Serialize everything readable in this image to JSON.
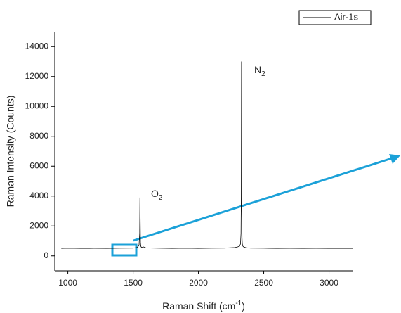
{
  "chart_data": {
    "type": "line",
    "x_label": {
      "text": "Raman Shift (cm",
      "sup": "-1",
      "tail": ")"
    },
    "y_label": "Raman Intensity (Counts)",
    "x": [
      950,
      1000,
      1100,
      1200,
      1300,
      1400,
      1500,
      1530,
      1545,
      1550,
      1552,
      1554,
      1556,
      1558,
      1560,
      1565,
      1580,
      1600,
      1700,
      1800,
      1900,
      2000,
      2100,
      2200,
      2280,
      2300,
      2315,
      2322,
      2326,
      2328,
      2330,
      2331,
      2332,
      2334,
      2336,
      2340,
      2346,
      2360,
      2380,
      2400,
      2500,
      2600,
      2700,
      2800,
      2900,
      3000,
      3100,
      3180
    ],
    "series": [
      {
        "name": "Air-1s",
        "color": "#000000",
        "values": [
          500,
          510,
          500,
          505,
          500,
          510,
          520,
          560,
          700,
          1500,
          3900,
          2500,
          900,
          700,
          620,
          560,
          600,
          530,
          510,
          500,
          510,
          500,
          510,
          520,
          560,
          600,
          650,
          800,
          1500,
          4000,
          13000,
          9000,
          3000,
          1200,
          800,
          650,
          600,
          560,
          530,
          520,
          510,
          500,
          505,
          500,
          505,
          500,
          500,
          500
        ]
      }
    ],
    "xlim": [
      900,
      3180
    ],
    "ylim": [
      -1000,
      15000
    ],
    "xticks": [
      1000,
      1500,
      2000,
      2500,
      3000
    ],
    "yticks": [
      0,
      2000,
      4000,
      6000,
      8000,
      10000,
      12000,
      14000
    ],
    "grid": false,
    "legend": "upper right",
    "annotations": [
      {
        "text": "N",
        "sub": "2"
      },
      {
        "text": "O",
        "sub": "2"
      }
    ]
  }
}
